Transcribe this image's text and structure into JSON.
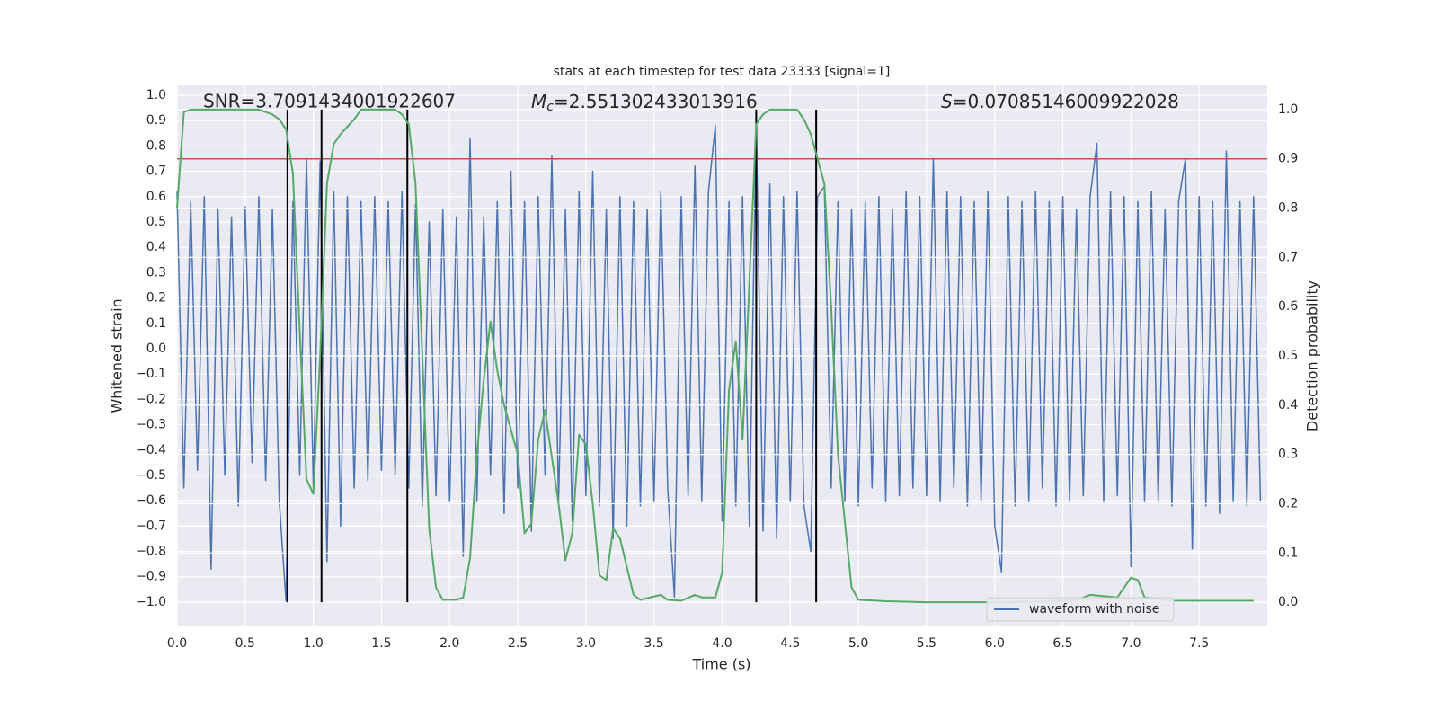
{
  "chart_data": {
    "type": "line",
    "title": "stats at each timestep for test data 23333 [signal=1]",
    "xlabel": "Time (s)",
    "ylabel": "Whitened strain",
    "y2label": "Detection probability",
    "annotations": [
      {
        "text": "SNR=3.7091434001922607"
      },
      {
        "symbol": "M",
        "subscript": "c",
        "text": "=2.551302433013916"
      },
      {
        "symbol": "S",
        "text": "=0.07085146009922028"
      }
    ],
    "xlim": [
      0,
      8
    ],
    "ylim": [
      -1.096,
      1.039
    ],
    "y2lim": [
      -0.049,
      1.049
    ],
    "xticks": [
      {
        "value": 0,
        "label": "0.0"
      },
      {
        "value": 0.5,
        "label": "0.5"
      },
      {
        "value": 1,
        "label": "1.0"
      },
      {
        "value": 1.5,
        "label": "1.5"
      },
      {
        "value": 2,
        "label": "2.0"
      },
      {
        "value": 2.5,
        "label": "2.5"
      },
      {
        "value": 3,
        "label": "3.0"
      },
      {
        "value": 3.5,
        "label": "3.5"
      },
      {
        "value": 4,
        "label": "4.0"
      },
      {
        "value": 4.5,
        "label": "4.5"
      },
      {
        "value": 5,
        "label": "5.0"
      },
      {
        "value": 5.5,
        "label": "5.5"
      },
      {
        "value": 6,
        "label": "6.0"
      },
      {
        "value": 6.5,
        "label": "6.5"
      },
      {
        "value": 7,
        "label": "7.0"
      },
      {
        "value": 7.5,
        "label": "7.5"
      }
    ],
    "yticks": [
      {
        "value": -1,
        "label": "−1.0"
      },
      {
        "value": -0.9,
        "label": "−0.9"
      },
      {
        "value": -0.8,
        "label": "−0.8"
      },
      {
        "value": -0.7,
        "label": "−0.7"
      },
      {
        "value": -0.6,
        "label": "−0.6"
      },
      {
        "value": -0.5,
        "label": "−0.5"
      },
      {
        "value": -0.4,
        "label": "−0.4"
      },
      {
        "value": -0.3,
        "label": "−0.3"
      },
      {
        "value": -0.2,
        "label": "−0.2"
      },
      {
        "value": -0.1,
        "label": "−0.1"
      },
      {
        "value": 0,
        "label": "0.0"
      },
      {
        "value": 0.1,
        "label": "0.1"
      },
      {
        "value": 0.2,
        "label": "0.2"
      },
      {
        "value": 0.3,
        "label": "0.3"
      },
      {
        "value": 0.4,
        "label": "0.4"
      },
      {
        "value": 0.5,
        "label": "0.5"
      },
      {
        "value": 0.6,
        "label": "0.6"
      },
      {
        "value": 0.7,
        "label": "0.7"
      },
      {
        "value": 0.8,
        "label": "0.8"
      },
      {
        "value": 0.9,
        "label": "0.9"
      },
      {
        "value": 1,
        "label": "1.0"
      }
    ],
    "y2ticks": [
      {
        "value": 0,
        "label": "0.0"
      },
      {
        "value": 0.1,
        "label": "0.1"
      },
      {
        "value": 0.2,
        "label": "0.2"
      },
      {
        "value": 0.3,
        "label": "0.3"
      },
      {
        "value": 0.4,
        "label": "0.4"
      },
      {
        "value": 0.5,
        "label": "0.5"
      },
      {
        "value": 0.6,
        "label": "0.6"
      },
      {
        "value": 0.7,
        "label": "0.7"
      },
      {
        "value": 0.8,
        "label": "0.8"
      },
      {
        "value": 0.9,
        "label": "0.9"
      },
      {
        "value": 1,
        "label": "1.0"
      }
    ],
    "grid": true,
    "legend": "lower right",
    "series": [
      {
        "name": "waveform with noise",
        "color": "#4c72b0",
        "x": [
          0,
          0.05,
          0.1,
          0.15,
          0.2,
          0.25,
          0.3,
          0.35,
          0.4,
          0.45,
          0.5,
          0.55,
          0.6,
          0.65,
          0.7,
          0.75,
          0.8,
          0.85,
          0.9,
          0.95,
          1,
          1.05,
          1.1,
          1.15,
          1.2,
          1.25,
          1.3,
          1.35,
          1.4,
          1.45,
          1.5,
          1.55,
          1.6,
          1.65,
          1.7,
          1.75,
          1.8,
          1.85,
          1.9,
          1.95,
          2,
          2.05,
          2.1,
          2.15,
          2.2,
          2.25,
          2.3,
          2.35,
          2.4,
          2.45,
          2.5,
          2.55,
          2.6,
          2.65,
          2.7,
          2.75,
          2.8,
          2.85,
          2.9,
          2.95,
          3,
          3.05,
          3.1,
          3.15,
          3.2,
          3.25,
          3.3,
          3.35,
          3.4,
          3.45,
          3.5,
          3.55,
          3.6,
          3.65,
          3.7,
          3.75,
          3.8,
          3.85,
          3.9,
          3.95,
          4,
          4.05,
          4.1,
          4.15,
          4.2,
          4.25,
          4.3,
          4.35,
          4.4,
          4.45,
          4.5,
          4.55,
          4.6,
          4.65,
          4.7,
          4.75,
          4.8,
          4.85,
          4.9,
          4.95,
          5,
          5.05,
          5.1,
          5.15,
          5.2,
          5.25,
          5.3,
          5.35,
          5.4,
          5.45,
          5.5,
          5.55,
          5.6,
          5.65,
          5.7,
          5.75,
          5.8,
          5.85,
          5.9,
          5.95,
          6,
          6.05,
          6.1,
          6.15,
          6.2,
          6.25,
          6.3,
          6.35,
          6.4,
          6.45,
          6.5,
          6.55,
          6.6,
          6.65,
          6.7,
          6.75,
          6.8,
          6.85,
          6.9,
          6.95,
          7,
          7.05,
          7.1,
          7.15,
          7.2,
          7.25,
          7.3,
          7.35,
          7.4,
          7.45,
          7.5,
          7.55,
          7.6,
          7.65,
          7.7,
          7.75,
          7.8,
          7.85,
          7.9,
          7.95
        ],
        "values": [
          0.62,
          -0.55,
          0.58,
          -0.48,
          0.6,
          -0.87,
          0.55,
          -0.5,
          0.52,
          -0.62,
          0.56,
          -0.45,
          0.6,
          -0.52,
          0.55,
          -0.6,
          -1.0,
          0.58,
          -0.5,
          0.75,
          -0.55,
          0.74,
          -0.84,
          0.62,
          -0.7,
          0.6,
          -0.55,
          0.58,
          -0.52,
          0.6,
          -0.48,
          0.58,
          -0.5,
          0.62,
          -0.55,
          0.57,
          -0.62,
          0.5,
          -0.58,
          0.55,
          -0.6,
          0.52,
          -0.82,
          0.83,
          -0.6,
          0.52,
          -0.5,
          0.58,
          -0.65,
          0.7,
          -0.55,
          0.58,
          -0.72,
          0.6,
          -0.5,
          0.76,
          -0.6,
          0.55,
          -0.68,
          0.62,
          -0.58,
          0.7,
          -0.62,
          0.55,
          -0.75,
          0.6,
          -0.7,
          0.58,
          -0.62,
          0.55,
          -0.6,
          0.62,
          -0.55,
          -0.98,
          0.6,
          -0.58,
          0.72,
          -0.6,
          0.62,
          0.88,
          -0.68,
          0.58,
          -0.62,
          0.6,
          -0.7,
          0.9,
          -0.72,
          0.65,
          -0.75,
          0.6,
          -0.6,
          0.62,
          -0.62,
          -0.8,
          0.6,
          0.64,
          -0.55,
          0.58,
          -0.6,
          0.55,
          -0.62,
          0.58,
          -0.55,
          0.6,
          -0.6,
          0.55,
          -0.58,
          0.62,
          -0.55,
          0.6,
          -0.58,
          0.75,
          -0.6,
          0.62,
          -0.55,
          0.6,
          -0.62,
          0.58,
          -0.6,
          0.62,
          -0.7,
          -0.88,
          0.6,
          -0.62,
          0.58,
          -0.6,
          0.62,
          -0.55,
          0.58,
          -0.62,
          0.6,
          -0.6,
          0.55,
          -0.58,
          0.6,
          0.81,
          -0.6,
          0.62,
          -0.58,
          0.6,
          -0.86,
          0.58,
          -0.6,
          0.62,
          -0.6,
          0.55,
          -0.62,
          0.58,
          0.75,
          -0.79,
          0.6,
          -0.62,
          0.58,
          -0.65,
          0.78,
          -0.6,
          0.58,
          -0.62,
          0.6,
          -0.6
        ]
      },
      {
        "color": "#55a868",
        "axis": "y2",
        "x": [
          0,
          0.05,
          0.1,
          0.3,
          0.6,
          0.7,
          0.75,
          0.8,
          0.85,
          0.9,
          0.95,
          1,
          1.05,
          1.1,
          1.15,
          1.2,
          1.3,
          1.35,
          1.6,
          1.65,
          1.7,
          1.75,
          1.8,
          1.85,
          1.9,
          1.95,
          2.05,
          2.1,
          2.15,
          2.2,
          2.25,
          2.3,
          2.35,
          2.4,
          2.5,
          2.55,
          2.6,
          2.65,
          2.7,
          2.8,
          2.85,
          2.9,
          2.95,
          3,
          3.05,
          3.1,
          3.15,
          3.2,
          3.25,
          3.35,
          3.4,
          3.55,
          3.6,
          3.7,
          3.8,
          3.85,
          3.95,
          4,
          4.05,
          4.1,
          4.15,
          4.2,
          4.25,
          4.3,
          4.35,
          4.55,
          4.6,
          4.65,
          4.75,
          4.8,
          4.85,
          4.95,
          5,
          5.2,
          5.5,
          6,
          6.4,
          6.6,
          6.7,
          6.9,
          7,
          7.05,
          7.1,
          7.3,
          7.9
        ],
        "values": [
          0.8,
          0.995,
          1.0,
          1.0,
          1.0,
          0.99,
          0.98,
          0.96,
          0.87,
          0.55,
          0.25,
          0.22,
          0.5,
          0.85,
          0.93,
          0.95,
          0.98,
          1.0,
          1.0,
          0.99,
          0.97,
          0.85,
          0.5,
          0.15,
          0.03,
          0.005,
          0.005,
          0.01,
          0.09,
          0.3,
          0.45,
          0.57,
          0.47,
          0.4,
          0.3,
          0.14,
          0.16,
          0.33,
          0.39,
          0.2,
          0.085,
          0.14,
          0.34,
          0.32,
          0.2,
          0.055,
          0.045,
          0.15,
          0.13,
          0.015,
          0.005,
          0.015,
          0.005,
          0.003,
          0.015,
          0.01,
          0.01,
          0.06,
          0.43,
          0.53,
          0.33,
          0.65,
          0.97,
          0.99,
          1.0,
          1.0,
          0.98,
          0.95,
          0.85,
          0.6,
          0.3,
          0.03,
          0.005,
          0.002,
          0.0,
          0.0,
          0.002,
          0.004,
          0.015,
          0.01,
          0.05,
          0.045,
          0.01,
          0.003,
          0.003
        ]
      }
    ],
    "hlines": [
      {
        "value": 0.9,
        "axis": "y2",
        "color": "#c44e52"
      }
    ],
    "vlines": {
      "values": [
        0.81,
        1.06,
        1.69,
        4.25,
        4.69
      ],
      "color": "#000000",
      "y2_range": [
        0,
        1
      ]
    }
  }
}
